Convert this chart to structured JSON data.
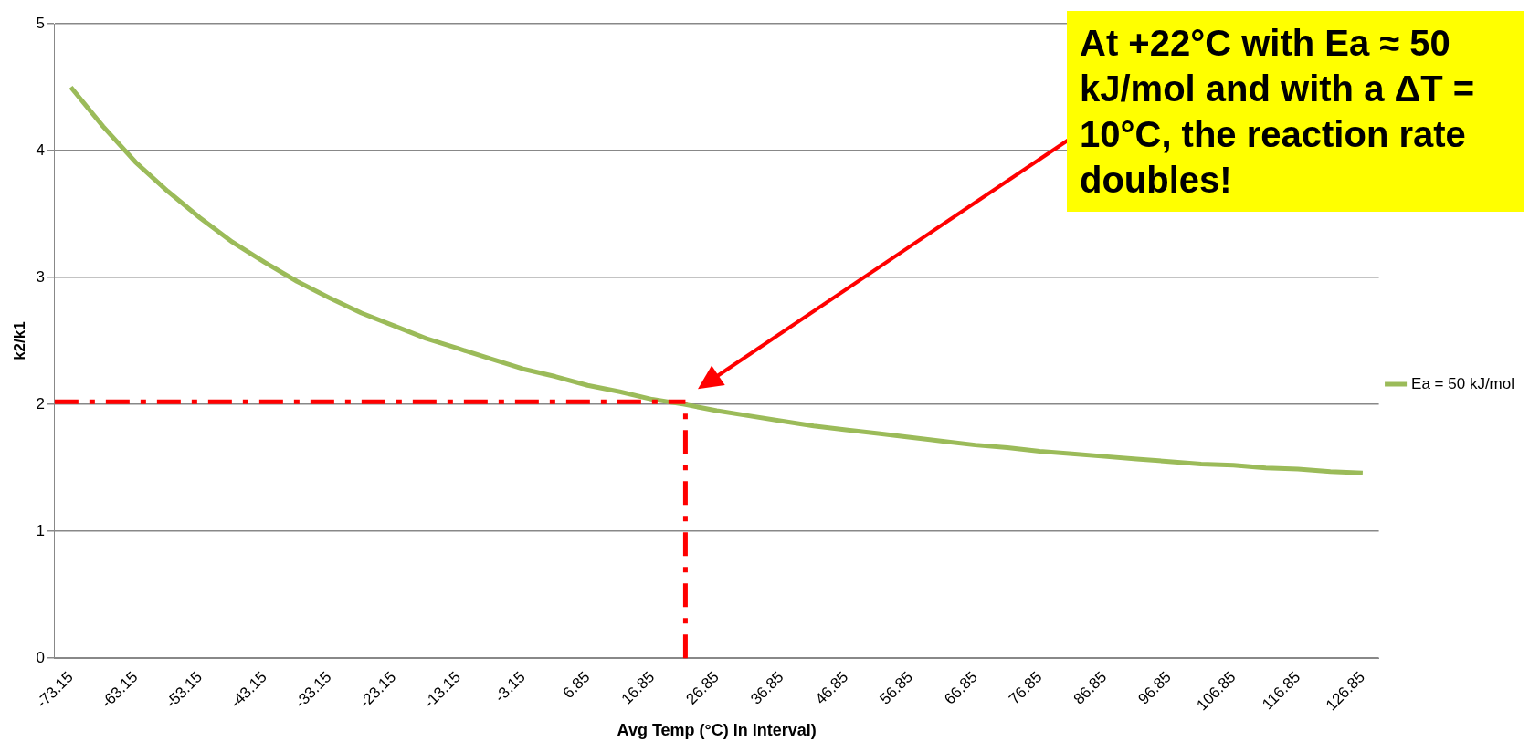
{
  "chart_data": {
    "type": "line",
    "xlabel": "Avg Temp (°C) in Interval)",
    "ylabel": "k2/k1",
    "x": [
      -73.15,
      -68.15,
      -63.15,
      -58.15,
      -53.15,
      -48.15,
      -43.15,
      -38.15,
      -33.15,
      -28.15,
      -23.15,
      -18.15,
      -13.15,
      -8.15,
      -3.15,
      1.85,
      6.85,
      11.85,
      16.85,
      21.85,
      26.85,
      31.85,
      36.85,
      41.85,
      46.85,
      51.85,
      56.85,
      61.85,
      66.85,
      71.85,
      76.85,
      81.85,
      86.85,
      91.85,
      96.85,
      101.85,
      106.85,
      111.85,
      116.85,
      121.85,
      126.85
    ],
    "series": [
      {
        "name": "Ea = 50 kJ/mol",
        "color": "#9bbb59",
        "values": [
          4.5,
          4.19,
          3.91,
          3.68,
          3.47,
          3.28,
          3.12,
          2.97,
          2.84,
          2.72,
          2.62,
          2.52,
          2.44,
          2.36,
          2.28,
          2.22,
          2.15,
          2.1,
          2.04,
          2.0,
          1.95,
          1.91,
          1.87,
          1.83,
          1.8,
          1.77,
          1.74,
          1.71,
          1.68,
          1.66,
          1.63,
          1.61,
          1.59,
          1.57,
          1.55,
          1.53,
          1.52,
          1.5,
          1.49,
          1.47,
          1.46
        ]
      }
    ],
    "xlim": [
      -75.65,
      129.35
    ],
    "xticks": [
      -73.15,
      -63.15,
      -53.15,
      -43.15,
      -33.15,
      -23.15,
      -13.15,
      -3.15,
      6.85,
      16.85,
      26.85,
      36.85,
      46.85,
      56.85,
      66.85,
      76.85,
      86.85,
      96.85,
      106.85,
      116.85,
      126.85
    ],
    "ylim": [
      0,
      5
    ],
    "yticks": [
      0,
      1,
      2,
      3,
      4,
      5
    ],
    "grid": "y",
    "legend": "right",
    "marker": "none",
    "line_style": "solid",
    "ref_lines": [
      {
        "axis": "y",
        "value": 2.02,
        "color": "#ff0000",
        "line_style": "dashed"
      },
      {
        "axis": "x",
        "value": 22,
        "color": "#ff0000",
        "line_style": "dashed"
      }
    ],
    "annotations": [
      "At +22°C with Ea ≈ 50 kJ/mol and with a ΔT = 10°C, the reaction rate doubles!"
    ]
  }
}
